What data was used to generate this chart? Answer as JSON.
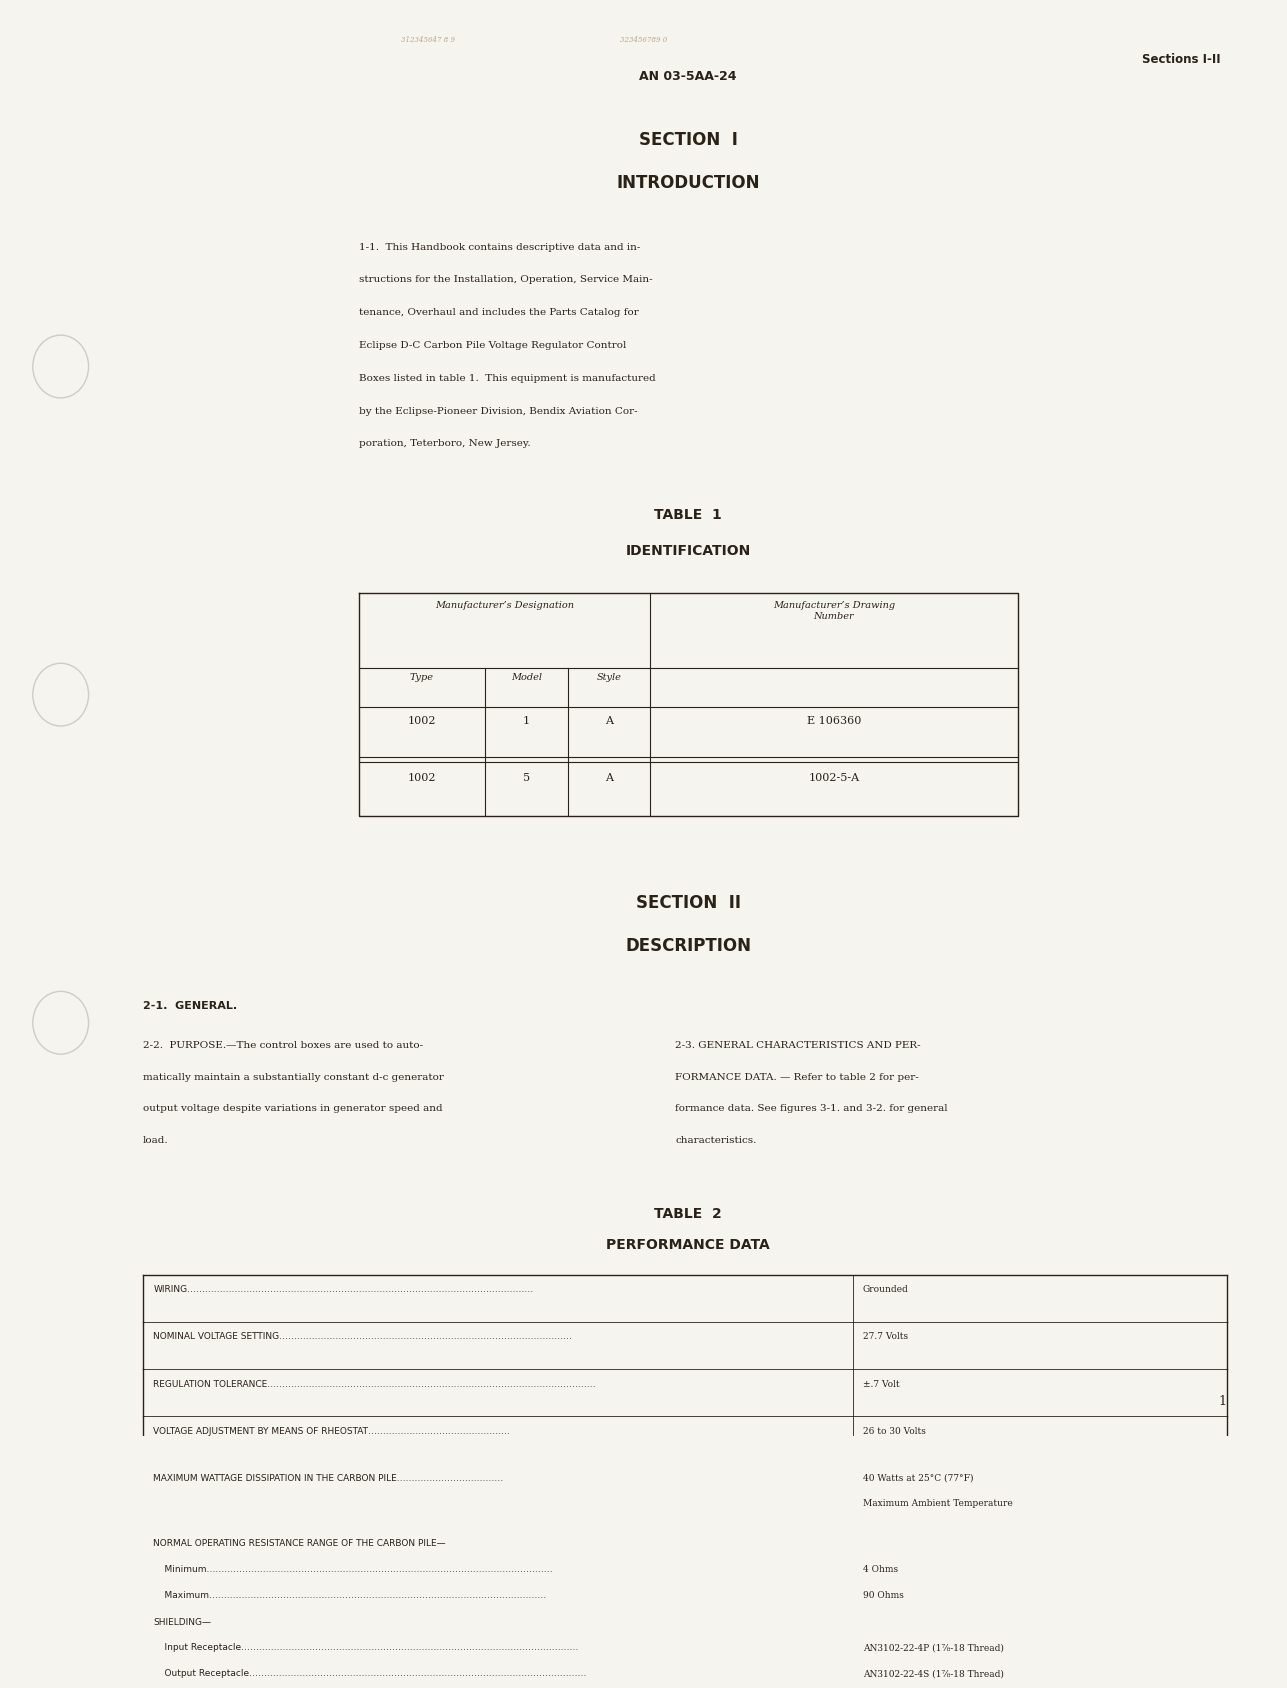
{
  "bg_color": "#f5f4ef",
  "text_color": "#2a2118",
  "page_width": 12.73,
  "page_height": 16.48,
  "header_doc_num": "AN 03-5AA-24",
  "header_sections": "Sections I-II",
  "section1_title": "SECTION  I",
  "section1_subtitle": "INTRODUCTION",
  "intro_para": "1-1.  This Handbook contains descriptive data and instructions for the Installation, Operation, Service Maintenance, Overhaul and includes the Parts Catalog for Eclipse D-C Carbon Pile Voltage Regulator Control Boxes listed in table 1.  This equipment is manufactured by the Eclipse-Pioneer Division, Bendix Aviation Corporation, Teterboro, New Jersey.",
  "table1_title": "TABLE  1",
  "table1_subtitle": "IDENTIFICATION",
  "table1_col_header1": "Manufacturer’s Designation",
  "table1_col_header2": "Manufacturer’s Drawing\nNumber",
  "table1_sub_col1": "Type",
  "table1_sub_col2": "Model",
  "table1_sub_col3": "Style",
  "table1_rows": [
    [
      "1002",
      "1",
      "A",
      "E 106360"
    ],
    [
      "1002",
      "5",
      "A",
      "1002-5-A"
    ]
  ],
  "section2_title": "SECTION  II",
  "section2_subtitle": "DESCRIPTION",
  "general_heading": "2-1.  GENERAL.",
  "col1_para1_label": "2-2.  PURPOSE.",
  "col1_para1": "—The control boxes are used to automatically maintain a substantially constant d-c generator output voltage despite variations in generator speed and load.",
  "col2_para1_label": "2-3.  GENERAL CHARACTERISTICS AND PERFORMANCE DATA.",
  "col2_para1": " — Refer to table 2 for performance data. See figures 3-1. and 3-2. for general characteristics.",
  "table2_title": "TABLE  2",
  "table2_subtitle": "PERFORMANCE DATA",
  "table2_rows": [
    {
      "label": "WIRING",
      "dots": true,
      "value": "Grounded"
    },
    {
      "label": "NOMINAL VOLTAGE SETTING",
      "dots": true,
      "value": "27.7 Volts"
    },
    {
      "label": "REGULATION TOLERANCE",
      "dots": true,
      "value": "±.7 Volt"
    },
    {
      "label": "VOLTAGE ADJUSTMENT BY MEANS OF RHEOSTAT",
      "dots": true,
      "value": "26 to 30 Volts"
    },
    {
      "label": "MAXIMUM WATTAGE DISSIPATION IN THE CARBON PILE",
      "dots": true,
      "value": "40 Watts at 25°C (77°F)\nMaximum Ambient Temperature"
    },
    {
      "label": "NORMAL OPERATING RESISTANCE RANGE OF THE CARBON PILE—\n    Minimum\n    Maximum",
      "dots": true,
      "value": "\n4 Ohms\n90 Ohms"
    },
    {
      "label": "SHIELDING—\n    Input Receptacle\n    Output Receptacle",
      "dots": true,
      "value": "\nAN3102-22-4P (1⅞-18 Thread)\nAN3102-22-4S (1⅞-18 Thread)"
    }
  ],
  "page_number": "1",
  "stamp1": "312345647 8 9",
  "stamp2": "323456789 0"
}
